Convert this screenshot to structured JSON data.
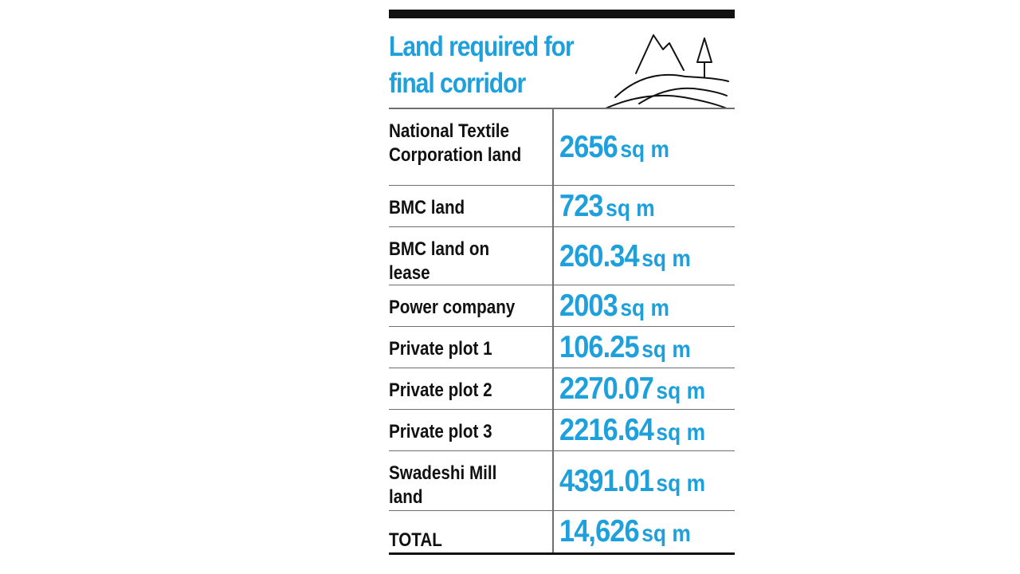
{
  "chart_data": {
    "type": "table",
    "title": "Land required for final corridor",
    "title_lines": [
      "Land required for",
      "final corridor"
    ],
    "unit": "sq m",
    "rows": [
      {
        "label_lines": [
          "National Textile",
          "Corporation land"
        ],
        "value_text": "2656",
        "value": 2656
      },
      {
        "label_lines": [
          "BMC land"
        ],
        "value_text": "723",
        "value": 723
      },
      {
        "label_lines": [
          "BMC land on",
          "lease"
        ],
        "value_text": "260.34",
        "value": 260.34
      },
      {
        "label_lines": [
          "Power company"
        ],
        "value_text": "2003",
        "value": 2003
      },
      {
        "label_lines": [
          "Private plot 1"
        ],
        "value_text": "106.25",
        "value": 106.25
      },
      {
        "label_lines": [
          "Private plot 2"
        ],
        "value_text": "2270.07",
        "value": 2270.07
      },
      {
        "label_lines": [
          "Private plot 3"
        ],
        "value_text": "2216.64",
        "value": 2216.64
      },
      {
        "label_lines": [
          "Swadeshi Mill",
          "land"
        ],
        "value_text": "4391.01",
        "value": 4391.01
      }
    ],
    "total": {
      "label": "TOTAL",
      "value_text": "14,626",
      "value": 14626
    }
  },
  "colors": {
    "accent": "#1ea0dc",
    "text": "#111111",
    "rule": "#6f6f6f"
  },
  "icons": {
    "illustration": "mountains-hills-tree-icon"
  }
}
